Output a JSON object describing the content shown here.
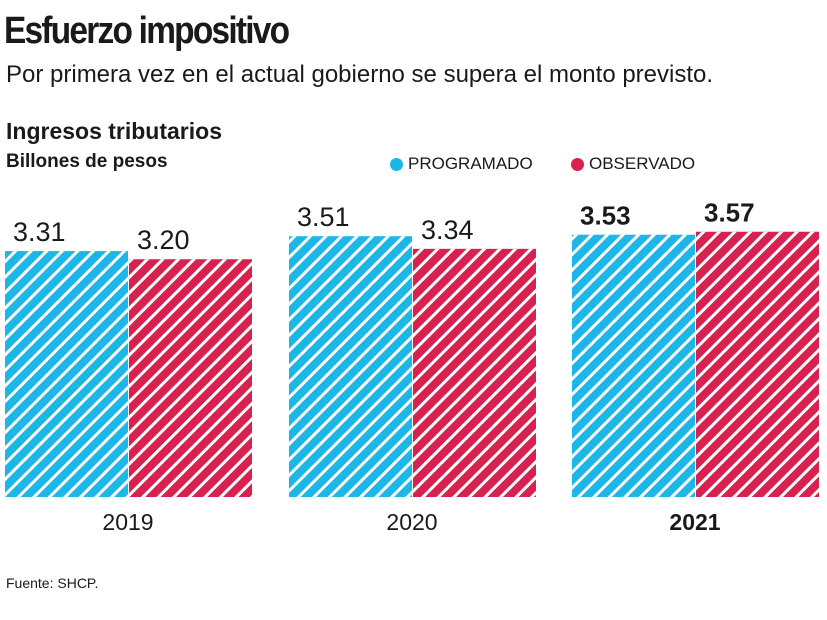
{
  "title": "Esfuerzo impositivo",
  "subtitle": "Por primera vez en el actual gobierno se supera el monto previsto.",
  "source": "Fuente: SHCP.",
  "colors": {
    "programado": "#1cb7e6",
    "observado": "#d7214e"
  },
  "chart_data": {
    "type": "bar",
    "title": "Ingresos tributarios",
    "ylabel": "Billones de pesos",
    "xlabel": "",
    "categories": [
      "2019",
      "2020",
      "2021"
    ],
    "series": [
      {
        "name": "PROGRAMADO",
        "values": [
          3.31,
          3.51,
          3.53
        ],
        "labels": [
          "3.31",
          "3.51",
          "3.53"
        ]
      },
      {
        "name": "OBSERVADO",
        "values": [
          3.2,
          3.34,
          3.57
        ],
        "labels": [
          "3.20",
          "3.34",
          "3.57"
        ]
      }
    ],
    "ylim": [
      0,
      3.57
    ],
    "legend": "top-right",
    "grid": false
  }
}
